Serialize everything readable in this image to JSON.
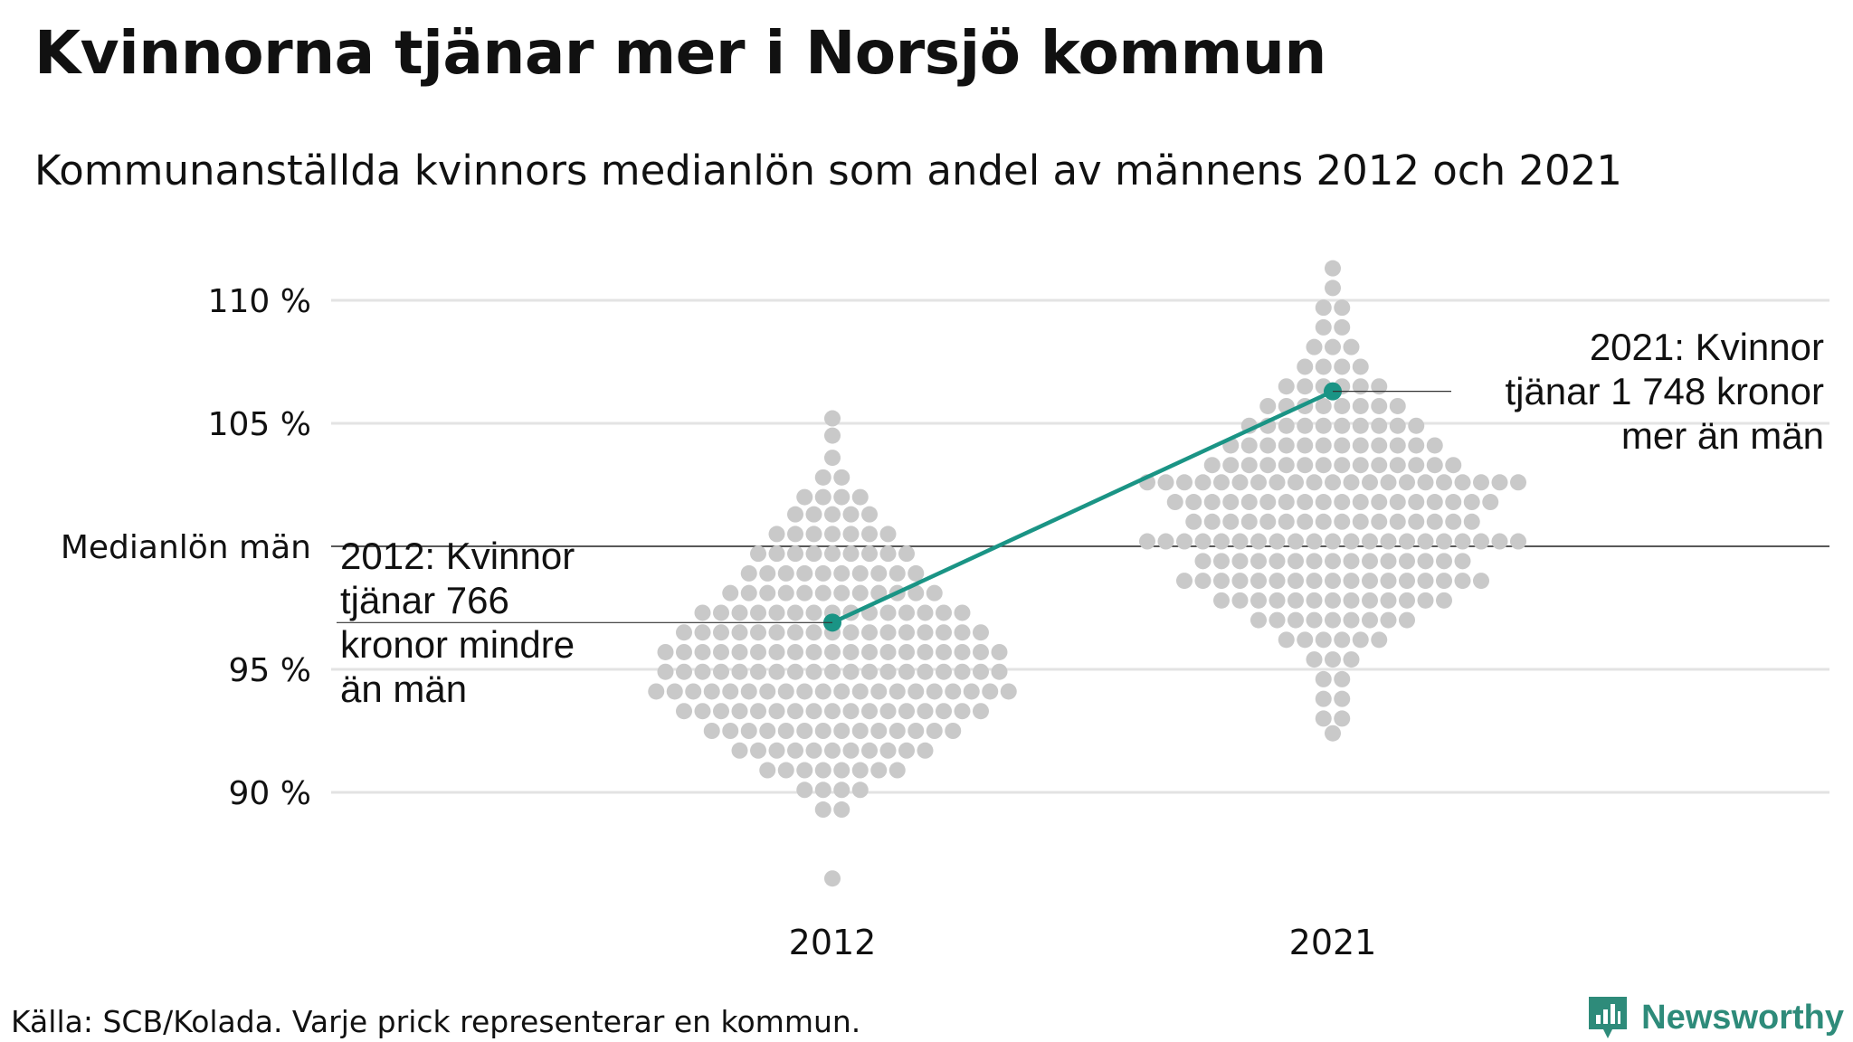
{
  "title": "Kvinnorna tjänar mer i Norsjö kommun",
  "subtitle": "Kommunanställda kvinnors medianlön som andel av männens 2012 och 2021",
  "source": "Källa: SCB/Kolada. Varje prick representerar en kommun.",
  "brand": "Newsworthy",
  "colors": {
    "highlight": "#1a9485",
    "dots": "#c9c9c9",
    "grid": "#e3e3e3",
    "reference": "#222222",
    "brand": "#2e8b7a"
  },
  "chart_data": {
    "type": "scatter",
    "subtype": "beeswarm",
    "title": "Kvinnorna tjänar mer i Norsjö kommun",
    "categories": [
      "2012",
      "2021"
    ],
    "y_ticks": [
      {
        "value": 90,
        "label": "90 %"
      },
      {
        "value": 95,
        "label": "95 %"
      },
      {
        "value": 100,
        "label": "Medianlön män"
      },
      {
        "value": 105,
        "label": "105 %"
      },
      {
        "value": 110,
        "label": "110 %"
      }
    ],
    "ylim": [
      85.5,
      112
    ],
    "reference_line": {
      "value": 100,
      "label": "Medianlön män"
    },
    "highlight": {
      "name": "Norsjö",
      "values": [
        {
          "category": "2012",
          "y": 96.9
        },
        {
          "category": "2021",
          "y": 106.3
        }
      ],
      "annotations": [
        {
          "category": "2012",
          "lines": [
            "2012: Kvinnor",
            "tjänar 766",
            "kronor mindre",
            "än män"
          ]
        },
        {
          "category": "2021",
          "lines": [
            "2021: Kvinnor",
            "tjänar 1 748 kronor",
            "mer än män"
          ]
        }
      ]
    },
    "swarm": [
      {
        "category": "2012",
        "rows": [
          {
            "y": 105.2,
            "n": 1
          },
          {
            "y": 104.5,
            "n": 1
          },
          {
            "y": 103.6,
            "n": 1
          },
          {
            "y": 102.8,
            "n": 2
          },
          {
            "y": 102.0,
            "n": 4
          },
          {
            "y": 101.3,
            "n": 5
          },
          {
            "y": 100.5,
            "n": 7
          },
          {
            "y": 99.7,
            "n": 9
          },
          {
            "y": 98.9,
            "n": 10
          },
          {
            "y": 98.1,
            "n": 12
          },
          {
            "y": 97.3,
            "n": 15
          },
          {
            "y": 96.5,
            "n": 17
          },
          {
            "y": 95.7,
            "n": 19
          },
          {
            "y": 94.9,
            "n": 19
          },
          {
            "y": 94.1,
            "n": 20
          },
          {
            "y": 93.3,
            "n": 17
          },
          {
            "y": 92.5,
            "n": 14
          },
          {
            "y": 91.7,
            "n": 11
          },
          {
            "y": 90.9,
            "n": 8
          },
          {
            "y": 90.1,
            "n": 4
          },
          {
            "y": 89.3,
            "n": 2
          },
          {
            "y": 86.5,
            "n": 1
          }
        ]
      },
      {
        "category": "2021",
        "rows": [
          {
            "y": 111.3,
            "n": 1
          },
          {
            "y": 110.5,
            "n": 1
          },
          {
            "y": 109.7,
            "n": 2
          },
          {
            "y": 108.9,
            "n": 2
          },
          {
            "y": 108.1,
            "n": 3
          },
          {
            "y": 107.3,
            "n": 4
          },
          {
            "y": 106.5,
            "n": 6
          },
          {
            "y": 105.7,
            "n": 8
          },
          {
            "y": 104.9,
            "n": 10
          },
          {
            "y": 104.1,
            "n": 12
          },
          {
            "y": 103.3,
            "n": 14
          },
          {
            "y": 102.6,
            "n": 21
          },
          {
            "y": 101.8,
            "n": 18
          },
          {
            "y": 101.0,
            "n": 16
          },
          {
            "y": 100.2,
            "n": 21
          },
          {
            "y": 99.4,
            "n": 15
          },
          {
            "y": 98.6,
            "n": 17
          },
          {
            "y": 97.8,
            "n": 13
          },
          {
            "y": 97.0,
            "n": 9
          },
          {
            "y": 96.2,
            "n": 6
          },
          {
            "y": 95.4,
            "n": 3
          },
          {
            "y": 94.6,
            "n": 2
          },
          {
            "y": 93.8,
            "n": 2
          },
          {
            "y": 93.0,
            "n": 2
          },
          {
            "y": 92.4,
            "n": 1
          }
        ]
      }
    ]
  }
}
